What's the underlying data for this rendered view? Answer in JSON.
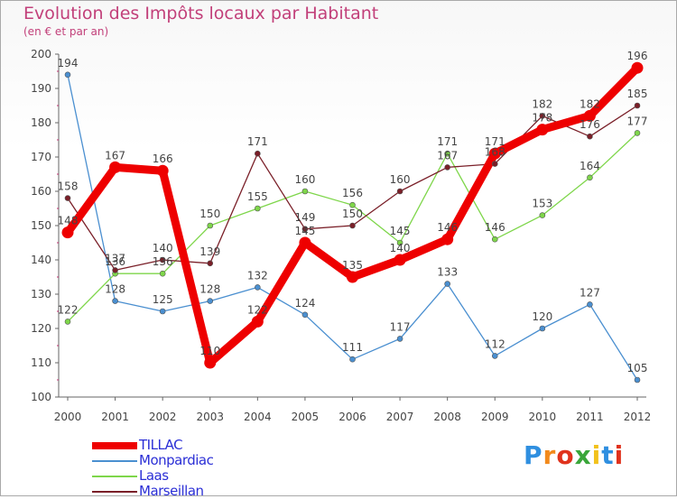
{
  "title": "Evolution des Impôts locaux par Habitant",
  "subtitle": "(en € et par an)",
  "logo_text": "Proxiti",
  "chart_data": {
    "type": "line",
    "title": "Evolution des Impôts locaux par Habitant",
    "subtitle": "(en € et par an)",
    "categories": [
      "2000",
      "2001",
      "2002",
      "2003",
      "2004",
      "2005",
      "2006",
      "2007",
      "2008",
      "2009",
      "2010",
      "2011",
      "2012"
    ],
    "ylim": [
      100,
      200
    ],
    "yticks": [
      100,
      110,
      120,
      130,
      140,
      150,
      160,
      170,
      180,
      190,
      200
    ],
    "grid": false,
    "legend_position": "bottom-left",
    "series": [
      {
        "name": "Monpardiac",
        "color": "#4a8fd0",
        "values": [
          194,
          128,
          125,
          128,
          132,
          124,
          111,
          117,
          133,
          112,
          120,
          127,
          105
        ]
      },
      {
        "name": "Laas",
        "color": "#7ed64a",
        "values": [
          122,
          136,
          136,
          150,
          155,
          160,
          156,
          145,
          171,
          146,
          153,
          164,
          177
        ]
      },
      {
        "name": "Marseillan",
        "color": "#7a1f28",
        "values": [
          158,
          137,
          140,
          139,
          171,
          149,
          150,
          160,
          167,
          168,
          182,
          176,
          185
        ]
      },
      {
        "name": "TILLAC",
        "color": "#ee0000",
        "values": [
          148,
          167,
          166,
          110,
          122,
          145,
          135,
          140,
          146,
          171,
          178,
          182,
          196
        ]
      }
    ],
    "legend_order": [
      "TILLAC",
      "Monpardiac",
      "Laas",
      "Marseillan"
    ]
  }
}
